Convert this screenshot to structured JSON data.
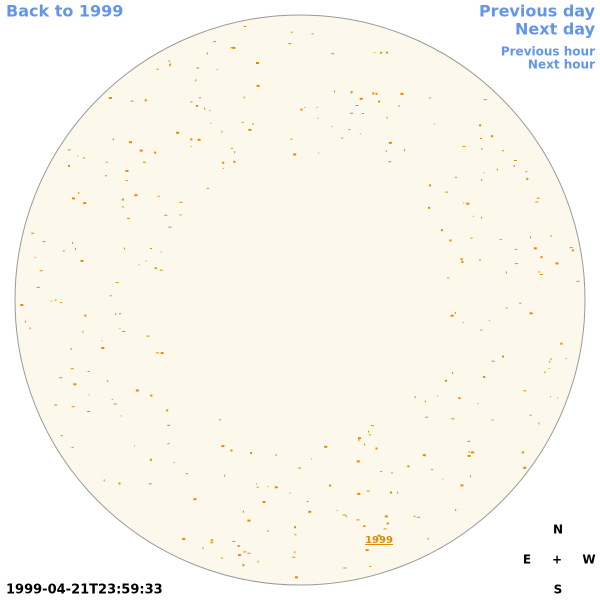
{
  "header": {
    "back_link": "Back to 1999",
    "previous_day": "Previous day",
    "next_day": "Next day",
    "previous_hour": "Previous hour",
    "next_hour": "Next hour"
  },
  "disk": {
    "year_link": "1999"
  },
  "compass": {
    "north": "N",
    "east": "E",
    "center": "+",
    "west": "W",
    "south": "S"
  },
  "timestamp": "1999-04-21T23:59:33"
}
